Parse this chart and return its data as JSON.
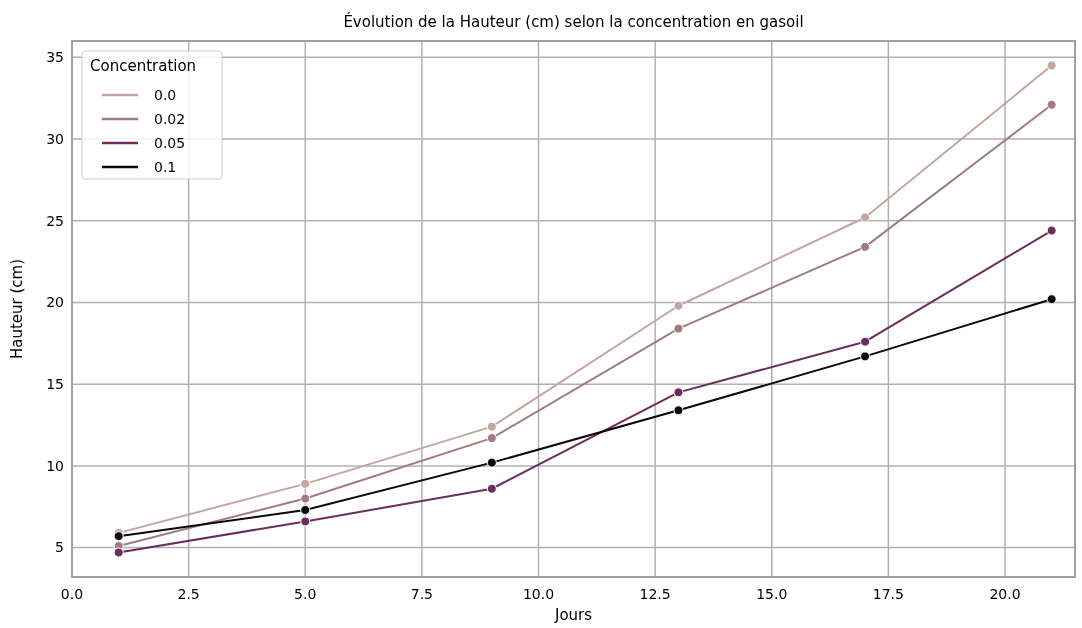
{
  "chart_data": {
    "type": "line",
    "title": "Évolution de la Hauteur (cm) selon la concentration en gasoil",
    "xlabel": "Jours",
    "ylabel": "Hauteur (cm)",
    "legend_title": "Concentration",
    "x": [
      1,
      5,
      9,
      13,
      17,
      21
    ],
    "series": [
      {
        "name": "0.0",
        "color": "#c4a5a2",
        "values": [
          5.9,
          8.9,
          12.4,
          19.8,
          25.2,
          34.5
        ]
      },
      {
        "name": "0.02",
        "color": "#a17b80",
        "values": [
          5.1,
          8.0,
          11.7,
          18.4,
          23.4,
          32.1
        ]
      },
      {
        "name": "0.05",
        "color": "#6b2d5c",
        "values": [
          4.7,
          6.6,
          8.6,
          14.5,
          17.6,
          24.4
        ]
      },
      {
        "name": "0.1",
        "color": "#0b070d",
        "values": [
          5.7,
          7.3,
          10.2,
          13.4,
          16.7,
          20.2
        ]
      }
    ],
    "xlim": [
      0,
      21.5
    ],
    "xticks": [
      {
        "value": 0,
        "label": "0.0"
      },
      {
        "value": 2.5,
        "label": "2.5"
      },
      {
        "value": 5,
        "label": "5.0"
      },
      {
        "value": 7.5,
        "label": "7.5"
      },
      {
        "value": 10,
        "label": "10.0"
      },
      {
        "value": 12.5,
        "label": "12.5"
      },
      {
        "value": 15,
        "label": "15.0"
      },
      {
        "value": 17.5,
        "label": "17.5"
      },
      {
        "value": 20,
        "label": "20.0"
      }
    ],
    "ylim": [
      3.2,
      36.0
    ],
    "yticks": [
      5,
      10,
      15,
      20,
      25,
      30,
      35
    ],
    "grid": true,
    "legend": "top left",
    "marker": "circle",
    "line_style": "solid"
  }
}
